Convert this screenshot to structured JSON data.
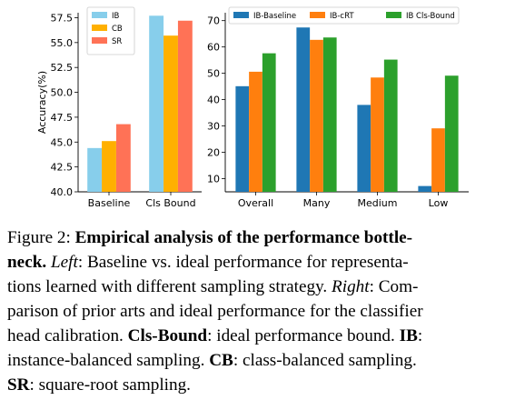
{
  "chart_data": [
    {
      "type": "bar",
      "categories": [
        "Baseline",
        "Cls Bound"
      ],
      "series": [
        {
          "name": "IB",
          "color": "#87ceeb",
          "values": [
            44.4,
            57.7
          ]
        },
        {
          "name": "CB",
          "color": "#ffb000",
          "values": [
            45.1,
            55.7
          ]
        },
        {
          "name": "SR",
          "color": "#ff7256",
          "values": [
            46.8,
            57.2
          ]
        }
      ],
      "ylabel": "Accuracy(%)",
      "ylim": [
        40.0,
        58.0
      ],
      "yticks": [
        "40.0",
        "42.5",
        "45.0",
        "47.5",
        "50.0",
        "52.5",
        "55.0",
        "57.5"
      ],
      "legend": "top-left",
      "grid": false
    },
    {
      "type": "bar",
      "categories": [
        "Overall",
        "Many",
        "Medium",
        "Low"
      ],
      "series": [
        {
          "name": "IB-Baseline",
          "color": "#1f77b4",
          "values": [
            45.1,
            67.4,
            38.0,
            7.2
          ]
        },
        {
          "name": "IB-cRT",
          "color": "#ff7f0e",
          "values": [
            50.6,
            62.7,
            48.4,
            29.1
          ]
        },
        {
          "name": "IB Cls-Bound",
          "color": "#2ca02c",
          "values": [
            57.6,
            63.6,
            55.2,
            49.1
          ]
        }
      ],
      "ylabel": "",
      "ylim": [
        5,
        73
      ],
      "yticks": [
        "10",
        "20",
        "30",
        "40",
        "50",
        "60",
        "70"
      ],
      "legend": "top",
      "grid": false
    }
  ],
  "caption": {
    "fig_label": "Figure 2: ",
    "title_part1": "Empirical analysis of the performance bottle-",
    "title_part2": "neck.",
    "left_label": "Left",
    "left_text_1": ": Baseline vs. ideal performance for representa-",
    "left_text_2": "tions learned with different sampling strategy. ",
    "right_label": "Right",
    "right_text_1": ": Com-",
    "right_text_2": "parison of prior arts and ideal performance for the classifier",
    "right_text_3": "head calibration. ",
    "clsbound_term": "Cls-Bound",
    "clsbound_def": ": ideal performance bound. ",
    "ib_term": "IB",
    "ib_def_1": ":",
    "ib_def_2": "instance-balanced sampling. ",
    "cb_term": "CB",
    "cb_def": ": class-balanced sampling.",
    "sr_term": "SR",
    "sr_def": ": square-root sampling."
  }
}
